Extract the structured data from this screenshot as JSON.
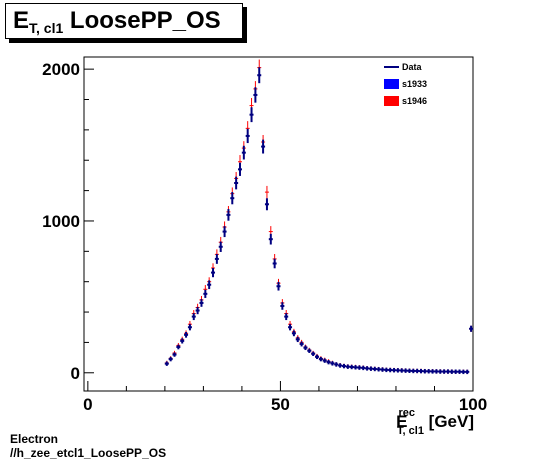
{
  "title": {
    "main": "E",
    "sub": "T, cl1",
    "rest": " LoosePP_OS"
  },
  "footer": {
    "line1": "Electron",
    "line2": "//h_zee_etcl1_LoosePP_OS"
  },
  "chart_data": {
    "type": "scatter",
    "xlabel": {
      "main": "E",
      "sup": "rec",
      "sub": "T, cl1",
      "unit": " [GeV]"
    },
    "xlim": [
      -1,
      100
    ],
    "ylim": [
      -120,
      2080
    ],
    "x_ticks": [
      0,
      50,
      100
    ],
    "y_ticks": [
      0,
      1000,
      2000
    ],
    "legend": {
      "position": "top-right",
      "entries": [
        {
          "label": "Data",
          "style": "line",
          "color": "#000080"
        },
        {
          "label": "s1933",
          "style": "box",
          "color": "#0000ff"
        },
        {
          "label": "s1946",
          "style": "box",
          "color": "#ff0000"
        }
      ]
    },
    "grid": false,
    "series": [
      {
        "name": "s1946",
        "color": "#ff0000",
        "x": [
          20.5,
          21.5,
          22.5,
          23.5,
          24.5,
          25.5,
          26.5,
          27.5,
          28.5,
          29.5,
          30.5,
          31.5,
          32.5,
          33.5,
          34.5,
          35.5,
          36.5,
          37.5,
          38.5,
          39.5,
          40.5,
          41.5,
          42.5,
          43.5,
          44.5,
          45.5,
          46.5,
          47.5,
          48.5,
          49.5,
          50.5,
          51.5,
          52.5,
          53.5,
          54.5,
          55.5,
          56.5,
          57.5,
          58.5,
          59.5,
          60.5,
          61.5,
          62.5,
          63.5,
          64.5,
          65.5,
          66.5,
          67.5,
          68.5,
          69.5,
          70.5,
          71.5,
          72.5,
          73.5,
          74.5,
          75.5,
          76.5,
          77.5,
          78.5,
          79.5,
          80.5,
          81.5,
          82.5,
          83.5,
          84.5,
          85.5,
          86.5,
          87.5,
          88.5,
          89.5,
          90.5,
          91.5,
          92.5,
          93.5,
          94.5,
          95.5,
          96.5,
          97.5,
          98.5,
          99.5
        ],
        "y": [
          65,
          95,
          130,
          180,
          220,
          260,
          320,
          390,
          430,
          480,
          550,
          600,
          690,
          780,
          860,
          960,
          1060,
          1180,
          1280,
          1390,
          1480,
          1610,
          1760,
          1870,
          2010,
          1520,
          1190,
          930,
          750,
          590,
          460,
          390,
          320,
          270,
          230,
          200,
          170,
          150,
          130,
          110,
          95,
          85,
          75,
          65,
          55,
          50,
          45,
          42,
          40,
          38,
          36,
          34,
          30,
          28,
          26,
          24,
          22,
          20,
          19,
          18,
          17,
          16,
          15,
          14,
          13,
          12,
          12,
          11,
          10,
          10,
          9,
          9,
          8,
          8,
          8,
          7,
          7,
          7,
          6,
          290
        ]
      },
      {
        "name": "Data",
        "color": "#000080",
        "x": [
          20.5,
          21.5,
          22.5,
          23.5,
          24.5,
          25.5,
          26.5,
          27.5,
          28.5,
          29.5,
          30.5,
          31.5,
          32.5,
          33.5,
          34.5,
          35.5,
          36.5,
          37.5,
          38.5,
          39.5,
          40.5,
          41.5,
          42.5,
          43.5,
          44.5,
          45.5,
          46.5,
          47.5,
          48.5,
          49.5,
          50.5,
          51.5,
          52.5,
          53.5,
          54.5,
          55.5,
          56.5,
          57.5,
          58.5,
          59.5,
          60.5,
          61.5,
          62.5,
          63.5,
          64.5,
          65.5,
          66.5,
          67.5,
          68.5,
          69.5,
          70.5,
          71.5,
          72.5,
          73.5,
          74.5,
          75.5,
          76.5,
          77.5,
          78.5,
          79.5,
          80.5,
          81.5,
          82.5,
          83.5,
          84.5,
          85.5,
          86.5,
          87.5,
          88.5,
          89.5,
          90.5,
          91.5,
          92.5,
          93.5,
          94.5,
          95.5,
          96.5,
          97.5,
          98.5,
          99.5
        ],
        "y": [
          60,
          90,
          120,
          170,
          210,
          250,
          300,
          370,
          410,
          460,
          520,
          580,
          660,
          750,
          830,
          930,
          1040,
          1150,
          1250,
          1340,
          1450,
          1560,
          1700,
          1830,
          1960,
          1490,
          1110,
          880,
          720,
          570,
          440,
          370,
          300,
          260,
          220,
          190,
          165,
          145,
          125,
          105,
          90,
          80,
          70,
          62,
          55,
          48,
          44,
          40,
          38,
          36,
          34,
          32,
          29,
          27,
          25,
          23,
          21,
          19,
          18,
          17,
          16,
          15,
          14,
          13,
          12,
          12,
          11,
          10,
          10,
          9,
          9,
          8,
          8,
          8,
          7,
          7,
          7,
          6,
          6,
          290
        ]
      }
    ]
  }
}
